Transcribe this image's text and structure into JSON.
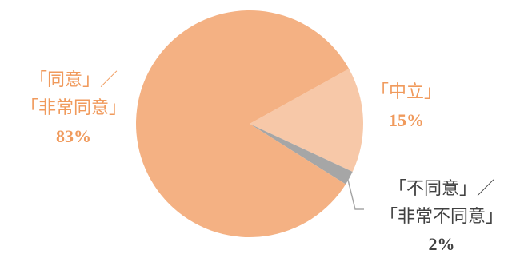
{
  "chart_data": {
    "type": "pie",
    "slices": [
      {
        "label_lines": [
          "「中立」"
        ],
        "percent_label": "15%",
        "value": 15,
        "color": "#f7c8a8",
        "label_color": "#f09a5c"
      },
      {
        "label_lines": [
          "「不同意」／",
          "「非常不同意」"
        ],
        "percent_label": "2%",
        "value": 2,
        "color": "#a6a6a6",
        "label_color": "#404040"
      },
      {
        "label_lines": [
          "「同意」／",
          "「非常同意」"
        ],
        "percent_label": "83%",
        "value": 83,
        "color": "#f4b183",
        "label_color": "#f09a5c"
      }
    ],
    "start_angle_deg": 29,
    "direction": "clockwise",
    "legend": "none",
    "leader_line_color": "#a6a6a6"
  }
}
